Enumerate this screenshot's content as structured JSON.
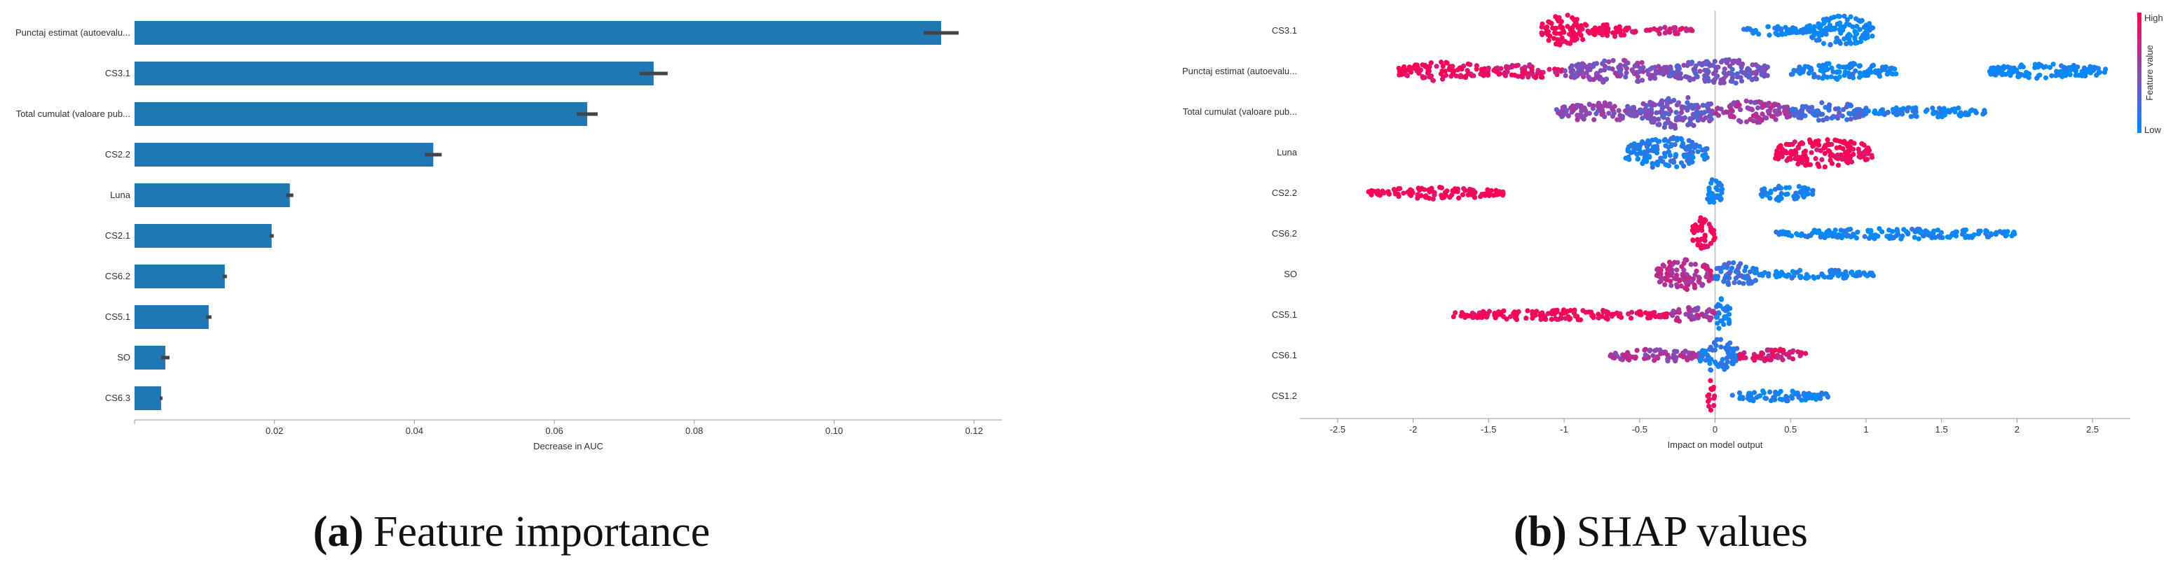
{
  "chart_data": [
    {
      "type": "bar",
      "orientation": "horizontal",
      "categories": [
        "Punctaj estimat (autoevalu...",
        "CS3.1",
        "Total cumulat (valoare pub...",
        "CS2.2",
        "Luna",
        "CS2.1",
        "CS6.2",
        "CS5.1",
        "SO",
        "CS6.3"
      ],
      "values": [
        0.1153,
        0.0742,
        0.0647,
        0.0427,
        0.0222,
        0.0196,
        0.0129,
        0.0106,
        0.0044,
        0.0038
      ],
      "errors": [
        0.0025,
        0.002,
        0.0015,
        0.0012,
        0.0005,
        0.0003,
        0.0003,
        0.0004,
        0.0006,
        0.0002
      ],
      "xlabel": "Decrease in AUC",
      "xlim": [
        0,
        0.124
      ],
      "xticks": [
        "0.02",
        "0.04",
        "0.06",
        "0.08",
        "0.10",
        "0.12"
      ],
      "xtick_values": [
        0.02,
        0.04,
        0.06,
        0.08,
        0.1,
        0.12
      ],
      "bar_color": "#1f77b4",
      "error_color": "#444444"
    },
    {
      "type": "scatter",
      "subtype": "beeswarm",
      "categories": [
        "CS3.1",
        "Punctaj estimat (autoevalu...",
        "Total cumulat (valoare pub...",
        "Luna",
        "CS2.2",
        "CS6.2",
        "SO",
        "CS5.1",
        "CS6.1",
        "CS1.2"
      ],
      "xlabel": "Impact on model output",
      "xlim": [
        -2.75,
        2.75
      ],
      "xticks": [
        "-2.5",
        "-2",
        "-1.5",
        "-1",
        "-0.5",
        "0",
        "0.5",
        "1",
        "1.5",
        "2",
        "2.5"
      ],
      "xtick_values": [
        -2.5,
        -2,
        -1.5,
        -1,
        -0.5,
        0,
        0.5,
        1,
        1.5,
        2,
        2.5
      ],
      "colorbar": {
        "label": "Feature value",
        "high": "High",
        "low": "Low",
        "high_color": "#ff0052",
        "low_color": "#008bfb"
      },
      "series": [
        {
          "clusters": [
            [
              -1.15,
              -0.85,
              0.9,
              1.0
            ],
            [
              -0.85,
              -0.55,
              0.3,
              0.95
            ],
            [
              -0.55,
              -0.15,
              0.1,
              0.8
            ],
            [
              0.15,
              0.6,
              0.15,
              0.05
            ],
            [
              0.6,
              1.05,
              0.85,
              0.0
            ]
          ]
        },
        {
          "clusters": [
            [
              -2.1,
              -1.5,
              0.5,
              0.95
            ],
            [
              -1.5,
              -1.0,
              0.3,
              0.85
            ],
            [
              -1.0,
              -0.3,
              0.6,
              0.5
            ],
            [
              -0.3,
              0.35,
              0.7,
              0.4
            ],
            [
              0.5,
              1.2,
              0.4,
              0.05
            ],
            [
              1.8,
              2.6,
              0.35,
              0.0
            ]
          ]
        },
        {
          "clusters": [
            [
              -1.05,
              -0.5,
              0.5,
              0.5
            ],
            [
              -0.5,
              0.0,
              0.95,
              0.4
            ],
            [
              0.0,
              0.5,
              0.6,
              0.6
            ],
            [
              0.5,
              1.0,
              0.5,
              0.25
            ],
            [
              1.0,
              1.8,
              0.2,
              0.05
            ]
          ]
        },
        {
          "clusters": [
            [
              -0.6,
              -0.05,
              0.9,
              0.1
            ],
            [
              0.4,
              1.05,
              0.8,
              0.95
            ]
          ]
        },
        {
          "clusters": [
            [
              -2.3,
              -1.4,
              0.25,
              1.0
            ],
            [
              -0.05,
              0.05,
              0.9,
              0.05
            ],
            [
              0.3,
              0.65,
              0.4,
              0.05
            ]
          ]
        },
        {
          "clusters": [
            [
              -0.15,
              0.0,
              1.0,
              1.0
            ],
            [
              0.4,
              2.0,
              0.2,
              0.05
            ]
          ]
        },
        {
          "clusters": [
            [
              -0.4,
              0.0,
              0.85,
              0.7
            ],
            [
              0.0,
              0.3,
              0.7,
              0.2
            ],
            [
              0.3,
              1.05,
              0.15,
              0.05
            ]
          ]
        },
        {
          "clusters": [
            [
              -1.75,
              -0.3,
              0.2,
              0.95
            ],
            [
              -0.3,
              0.0,
              0.4,
              0.6
            ],
            [
              0.0,
              0.1,
              0.95,
              0.05
            ]
          ]
        },
        {
          "clusters": [
            [
              -0.7,
              -0.1,
              0.3,
              0.6
            ],
            [
              -0.1,
              0.15,
              0.95,
              0.1
            ],
            [
              0.15,
              0.6,
              0.3,
              0.85
            ]
          ]
        },
        {
          "clusters": [
            [
              -0.05,
              0.0,
              1.0,
              1.0
            ],
            [
              0.1,
              0.75,
              0.25,
              0.05
            ]
          ]
        }
      ]
    }
  ],
  "captions": [
    {
      "letter": "(a)",
      "text": "Feature importance"
    },
    {
      "letter": "(b)",
      "text": "SHAP values"
    }
  ]
}
